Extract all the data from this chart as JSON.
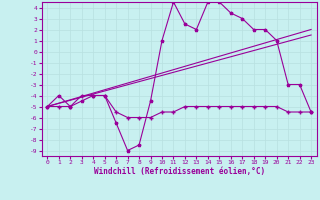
{
  "title": "",
  "xlabel": "Windchill (Refroidissement éolien,°C)",
  "ylabel": "",
  "background_color": "#c8f0f0",
  "line_color": "#990099",
  "grid_color": "#b8e0e0",
  "xlim": [
    -0.5,
    23.5
  ],
  "ylim": [
    -9.5,
    4.5
  ],
  "xticks": [
    0,
    1,
    2,
    3,
    4,
    5,
    6,
    7,
    8,
    9,
    10,
    11,
    12,
    13,
    14,
    15,
    16,
    17,
    18,
    19,
    20,
    21,
    22,
    23
  ],
  "yticks": [
    4,
    3,
    2,
    1,
    0,
    -1,
    -2,
    -3,
    -4,
    -5,
    -6,
    -7,
    -8,
    -9
  ],
  "series1_x": [
    0,
    1,
    2,
    3,
    4,
    5,
    6,
    7,
    8,
    9,
    10,
    11,
    12,
    13,
    14,
    15,
    16,
    17,
    18,
    19,
    20,
    21,
    22,
    23
  ],
  "series1_y": [
    -5,
    -4,
    -5,
    -4.5,
    -4,
    -4,
    -6.5,
    -9,
    -8.5,
    -4.5,
    1,
    4.5,
    2.5,
    2,
    4.5,
    4.5,
    3.5,
    3,
    2,
    2,
    1,
    -3,
    -3,
    -5.5
  ],
  "series2_x": [
    0,
    1,
    2,
    3,
    4,
    5,
    6,
    7,
    8,
    9,
    10,
    11,
    12,
    13,
    14,
    15,
    16,
    17,
    18,
    19,
    20,
    21,
    22,
    23
  ],
  "series2_y": [
    -5,
    -5,
    -5,
    -4,
    -4,
    -4,
    -5.5,
    -6,
    -6,
    -6,
    -5.5,
    -5.5,
    -5,
    -5,
    -5,
    -5,
    -5,
    -5,
    -5,
    -5,
    -5,
    -5.5,
    -5.5,
    -5.5
  ],
  "series3_x": [
    0,
    23
  ],
  "series3_y": [
    -5.0,
    1.5
  ],
  "series4_x": [
    0,
    23
  ],
  "series4_y": [
    -5.0,
    2.0
  ],
  "figsize": [
    3.2,
    2.0
  ],
  "dpi": 100,
  "tick_fontsize": 4.5,
  "xlabel_fontsize": 5.5
}
